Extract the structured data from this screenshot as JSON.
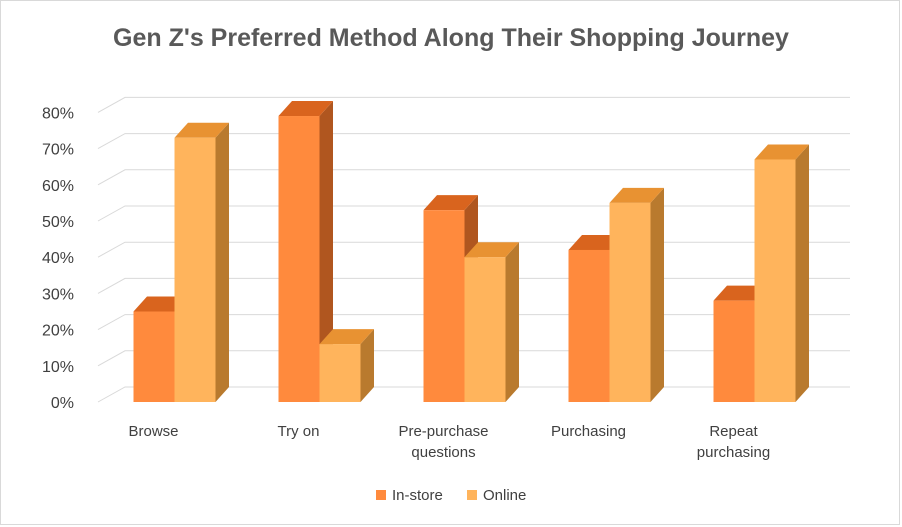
{
  "chart_data": {
    "type": "bar",
    "style": "3d-clustered-column",
    "title": "Gen Z's Preferred Method Along Their Shopping Journey",
    "xlabel": "",
    "ylabel": "",
    "categories": [
      [
        "Browse"
      ],
      [
        "Try on"
      ],
      [
        "Pre-purchase",
        "questions"
      ],
      [
        "Purchasing"
      ],
      [
        "Repeat",
        "purchasing"
      ]
    ],
    "series": [
      {
        "name": "In-store",
        "values": [
          25,
          79,
          53,
          42,
          28
        ],
        "color": "#ff8a3d",
        "top_color": "#d9641e",
        "side_color": "#b0561f"
      },
      {
        "name": "Online",
        "values": [
          73,
          16,
          40,
          55,
          67
        ],
        "color": "#ffb45c",
        "top_color": "#e89232",
        "side_color": "#b97a2e"
      }
    ],
    "ylim": [
      0,
      80
    ],
    "yticks": [
      0,
      10,
      20,
      30,
      40,
      50,
      60,
      70,
      80
    ],
    "ytick_labels": [
      "0%",
      "10%",
      "20%",
      "30%",
      "40%",
      "50%",
      "60%",
      "70%",
      "80%"
    ],
    "grid": true,
    "legend": "bottom"
  }
}
